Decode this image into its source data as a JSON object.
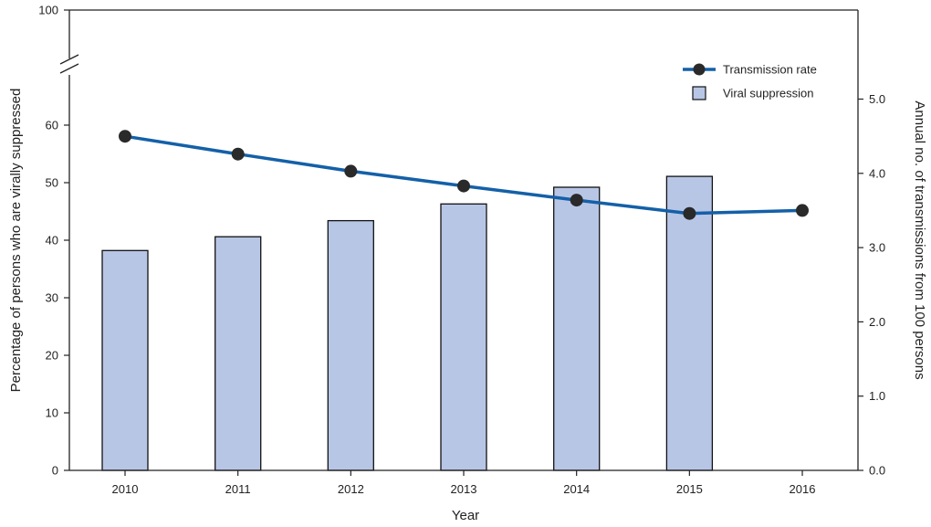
{
  "chart_data": {
    "type": "bar",
    "categories": [
      "2010",
      "2011",
      "2012",
      "2013",
      "2014",
      "2015",
      "2016"
    ],
    "xlabel": "Year",
    "ylabel_left": "Percentage of persons who are virally suppressed",
    "ylabel_right": "Annual no. of transmissions from 100 persons",
    "left_axis": {
      "ticks": [
        "0",
        "10",
        "20",
        "30",
        "40",
        "50",
        "60",
        "100"
      ],
      "ylim": [
        0,
        100
      ],
      "broken": true
    },
    "right_axis": {
      "ticks": [
        "0.0",
        "1.0",
        "2.0",
        "3.0",
        "4.0",
        "5.0"
      ],
      "ylim": [
        0,
        5.0
      ]
    },
    "series": [
      {
        "name": "Viral suppression",
        "type": "bar",
        "axis": "left",
        "values": [
          38.2,
          40.6,
          43.4,
          46.3,
          49.2,
          51.1,
          null
        ]
      },
      {
        "name": "Transmission rate",
        "type": "line",
        "axis": "right",
        "values": [
          4.5,
          4.26,
          4.03,
          3.83,
          3.64,
          3.46,
          3.5
        ]
      }
    ],
    "legend": {
      "placement": "top-right",
      "items": [
        "Transmission rate",
        "Viral suppression"
      ]
    },
    "grid": false,
    "colors": {
      "bar_fill": "#b8c6e6",
      "bar_stroke": "#111111",
      "line": "#1460a8",
      "marker": "#2a2a2a"
    }
  }
}
